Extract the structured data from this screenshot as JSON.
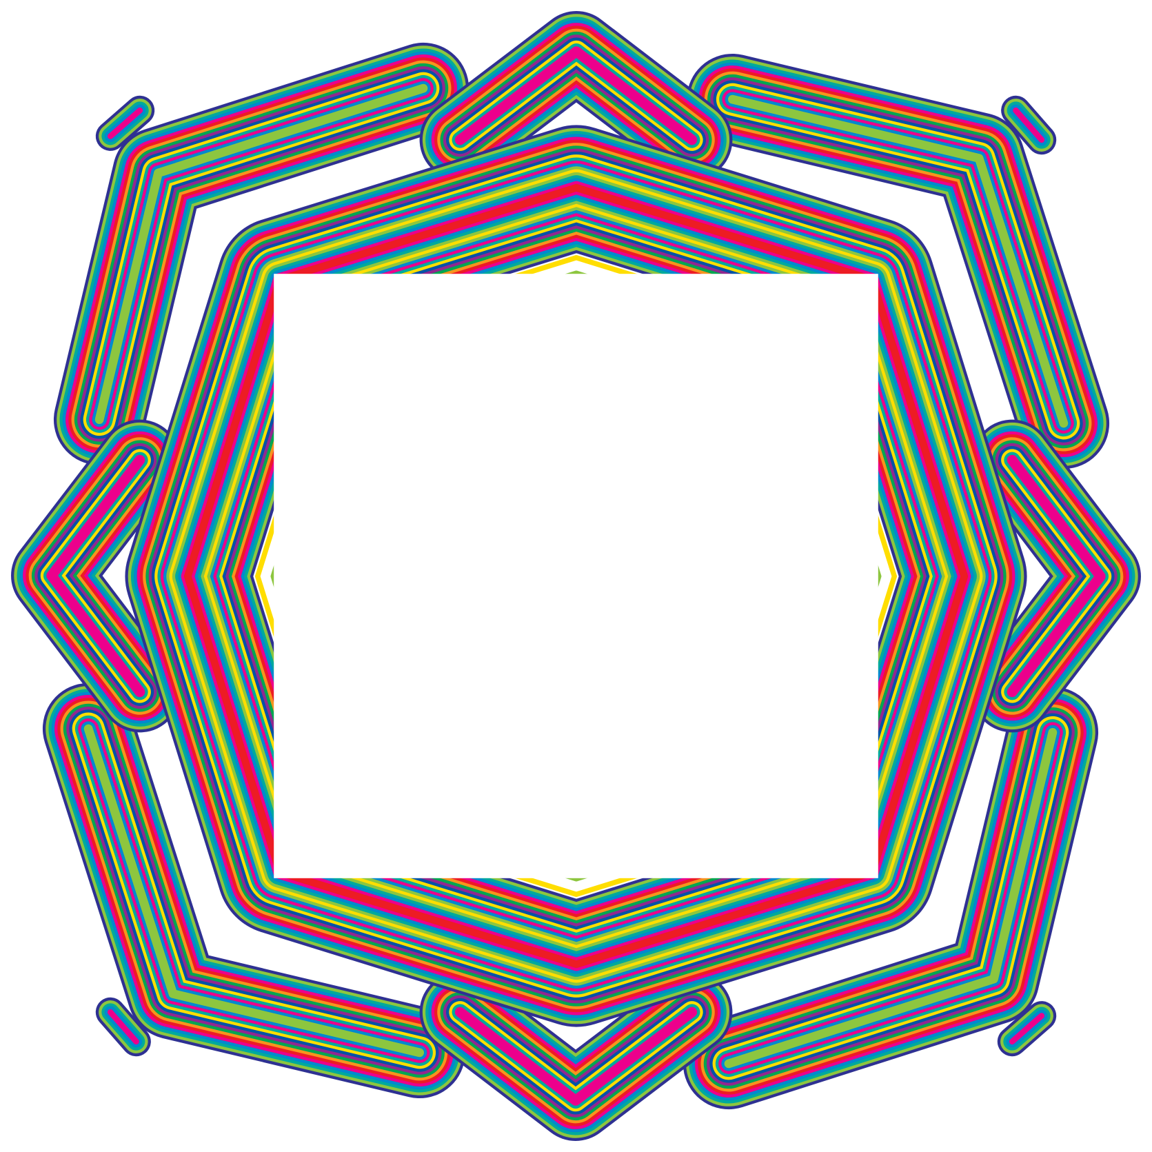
{
  "artwork": {
    "kind": "decorative-striped-frame",
    "outline_color": "#2e3192",
    "background_color": "#ffffff",
    "stripe_palette": [
      "#2e3192",
      "#ffde00",
      "#8dc63f",
      "#00a99d",
      "#0089cf",
      "#ec008c",
      "#ed1c24",
      "#f7941d",
      "#00a651",
      "#92278f",
      "#0054a6",
      "#ffde00",
      "#00a99d",
      "#ec008c",
      "#0089cf",
      "#8dc63f"
    ]
  }
}
